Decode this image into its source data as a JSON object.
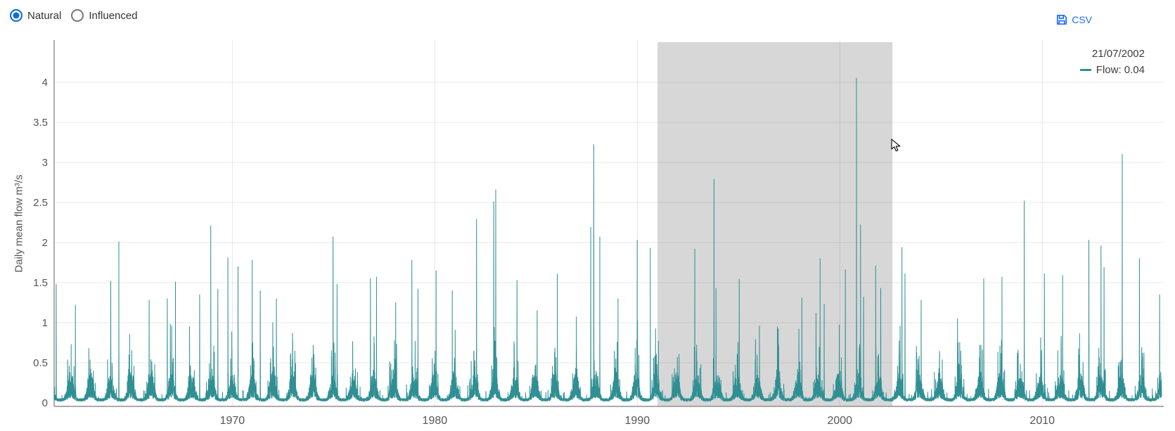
{
  "controls": {
    "natural_label": "Natural",
    "influenced_label": "Influenced",
    "selected": "Natural",
    "radio_accent_color": "#0e6dd2"
  },
  "export": {
    "csv_label": "CSV",
    "save_icon": "floppy-disk",
    "accent_color": "#1f6ff2"
  },
  "tooltip": {
    "date": "21/07/2002",
    "flow_line": "Flow: 0.04",
    "series": "Flow",
    "value": "0.04"
  },
  "chart_data": {
    "type": "line",
    "title": "",
    "xlabel": "",
    "ylabel": "Daily mean flow m³/s",
    "series_name": "Flow",
    "line_color": "#2f8f93",
    "grid": true,
    "x_ticks": [
      1970,
      1980,
      1990,
      2000,
      2010
    ],
    "y_ticks": [
      0,
      0.5,
      1,
      1.5,
      2,
      2.5,
      3,
      3.5,
      4
    ],
    "x_range": [
      1961.2,
      2016.0
    ],
    "ylim": [
      0,
      4.53
    ],
    "x_unit": "year (daily resolution series)",
    "band": {
      "x_start": 1991.0,
      "x_end": 2002.6,
      "color": "#d7d7d7"
    },
    "baseflow_range": [
      0.02,
      0.3
    ],
    "peaks": [
      [
        1961.3,
        1.48
      ],
      [
        1962.25,
        1.22
      ],
      [
        1964.0,
        1.52
      ],
      [
        1964.4,
        2.01
      ],
      [
        1965.9,
        1.28
      ],
      [
        1966.8,
        1.3
      ],
      [
        1967.2,
        1.51
      ],
      [
        1967.9,
        0.95
      ],
      [
        1968.4,
        1.35
      ],
      [
        1968.95,
        2.21
      ],
      [
        1969.3,
        1.42
      ],
      [
        1969.8,
        1.81
      ],
      [
        1970.3,
        1.7
      ],
      [
        1971.0,
        1.78
      ],
      [
        1971.4,
        1.4
      ],
      [
        1972.2,
        1.3
      ],
      [
        1973.0,
        0.78
      ],
      [
        1975.0,
        2.07
      ],
      [
        1975.2,
        1.48
      ],
      [
        1976.85,
        1.55
      ],
      [
        1977.15,
        1.57
      ],
      [
        1978.1,
        1.25
      ],
      [
        1978.9,
        1.78
      ],
      [
        1979.2,
        1.42
      ],
      [
        1980.1,
        1.65
      ],
      [
        1980.9,
        1.4
      ],
      [
        1982.1,
        2.29
      ],
      [
        1982.95,
        2.51
      ],
      [
        1983.05,
        2.66
      ],
      [
        1984.1,
        1.53
      ],
      [
        1985.1,
        1.15
      ],
      [
        1986.1,
        1.61
      ],
      [
        1987.75,
        2.19
      ],
      [
        1987.9,
        3.22
      ],
      [
        1988.2,
        2.07
      ],
      [
        1989.1,
        1.3
      ],
      [
        1990.05,
        2.03
      ],
      [
        1990.7,
        1.93
      ],
      [
        1992.9,
        1.92
      ],
      [
        1993.85,
        2.79
      ],
      [
        1993.95,
        1.43
      ],
      [
        1995.1,
        1.54
      ],
      [
        1996.1,
        0.96
      ],
      [
        1998.05,
        0.92
      ],
      [
        1998.2,
        1.31
      ],
      [
        1998.9,
        1.12
      ],
      [
        1999.1,
        1.8
      ],
      [
        1999.3,
        1.23
      ],
      [
        2000.05,
        0.97
      ],
      [
        2000.35,
        1.66
      ],
      [
        2000.9,
        4.05
      ],
      [
        2001.1,
        2.22
      ],
      [
        2001.25,
        1.32
      ],
      [
        2001.85,
        1.71
      ],
      [
        2002.1,
        1.43
      ],
      [
        2003.15,
        1.94
      ],
      [
        2003.3,
        1.61
      ],
      [
        2004.1,
        1.28
      ],
      [
        2005.9,
        1.05
      ],
      [
        2007.2,
        1.55
      ],
      [
        2008.1,
        1.57
      ],
      [
        2009.2,
        2.52
      ],
      [
        2010.2,
        1.61
      ],
      [
        2011.1,
        1.59
      ],
      [
        2012.4,
        2.03
      ],
      [
        2013.0,
        1.96
      ],
      [
        2013.15,
        1.69
      ],
      [
        2014.05,
        3.1
      ],
      [
        2014.9,
        1.8
      ],
      [
        2015.9,
        1.35
      ]
    ]
  }
}
